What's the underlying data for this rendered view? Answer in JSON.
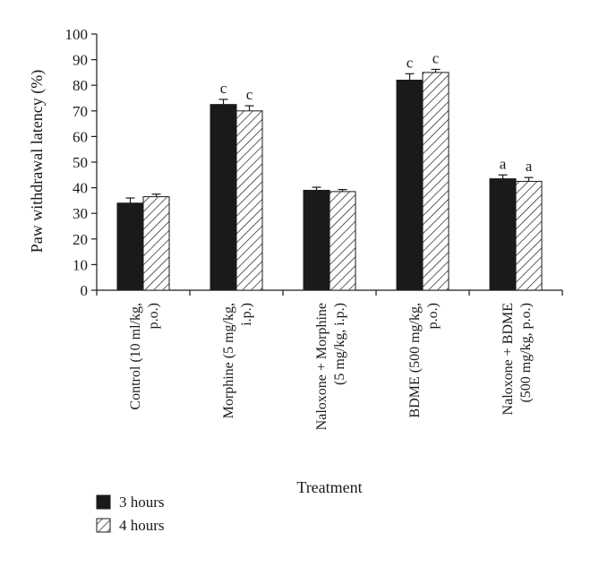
{
  "chart_data": {
    "type": "bar",
    "title": "",
    "xlabel": "Treatment",
    "ylabel": "Paw withdrawal latency (%)",
    "ylim": [
      0,
      100
    ],
    "yticks": [
      0,
      10,
      20,
      30,
      40,
      50,
      60,
      70,
      80,
      90,
      100
    ],
    "grid": false,
    "legend_position": "bottom-left",
    "categories": [
      [
        "Control (10 ml/kg,",
        "p.o.)"
      ],
      [
        "Morphine (5 mg/kg,",
        "i.p.)"
      ],
      [
        "Naloxone + Morphine",
        "(5 mg/kg, i.p.)"
      ],
      [
        "BDME (500 mg/kg,",
        "p.o.)"
      ],
      [
        "Naloxone + BDME",
        "(500 mg/kg, p.o.)"
      ]
    ],
    "series": [
      {
        "name": "3 hours",
        "fill": "solid",
        "color": "#1a1a1a",
        "values": [
          34,
          72.5,
          39,
          82,
          43.5
        ],
        "errors": [
          2,
          2,
          1.2,
          2.5,
          1.5
        ],
        "significance": [
          "",
          "c",
          "",
          "c",
          "a"
        ]
      },
      {
        "name": "4 hours",
        "fill": "hatched",
        "color": "#1a1a1a",
        "values": [
          36.5,
          70,
          38.5,
          85,
          42.5
        ],
        "errors": [
          1,
          2,
          0.8,
          1.2,
          1.5
        ],
        "significance": [
          "",
          "c",
          "",
          "c",
          "a"
        ]
      }
    ]
  }
}
